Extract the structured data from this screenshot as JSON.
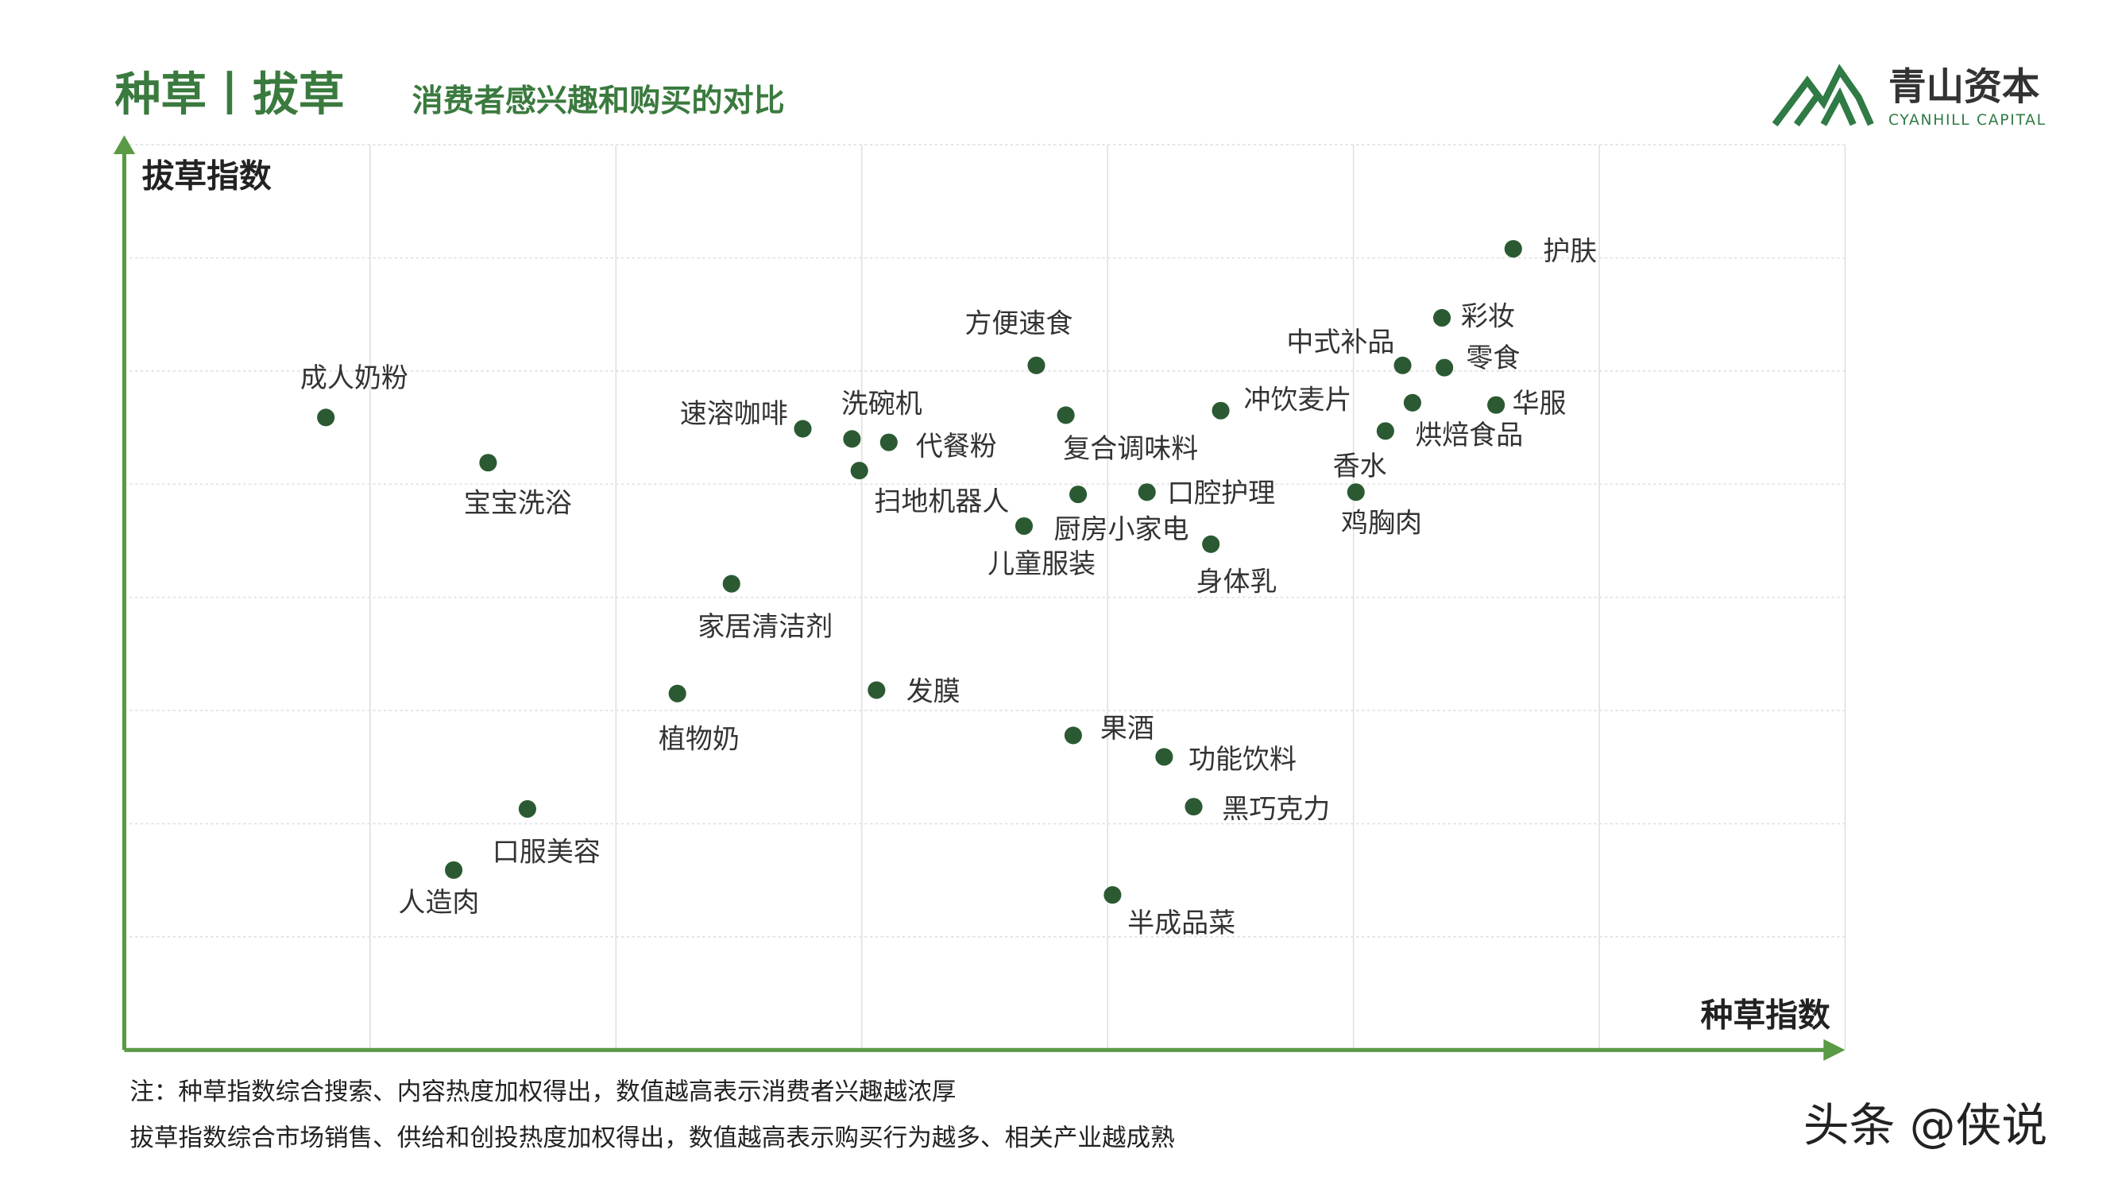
{
  "header": {
    "title": "种草丨拔草",
    "subtitle": "消费者感兴趣和购买的对比",
    "logo": "青山资本",
    "logo_en": "CYANHILL CAPITAL"
  },
  "chart_data": {
    "type": "scatter",
    "x_label": "种草指数",
    "y_label": "拔草指数",
    "color": "#2b5a32",
    "grid": true,
    "xlim": [
      0,
      7
    ],
    "ylim": [
      0,
      8
    ],
    "xticks": [
      1,
      2,
      3,
      4,
      5,
      6,
      7
    ],
    "yticks": [
      1,
      2,
      3,
      4,
      5,
      6,
      7,
      8
    ],
    "points": [
      {
        "label": "护肤",
        "x": 5.65,
        "y": 7.08
      },
      {
        "label": "彩妆",
        "x": 5.36,
        "y": 6.47
      },
      {
        "label": "中式补品",
        "x": 5.2,
        "y": 6.05
      },
      {
        "label": "零食",
        "x": 5.37,
        "y": 6.03
      },
      {
        "label": "华服",
        "x": 5.58,
        "y": 5.7
      },
      {
        "label": "冲饮麦片",
        "x": 4.46,
        "y": 5.65
      },
      {
        "label": "烘焙食品",
        "x": 5.24,
        "y": 5.72
      },
      {
        "label": "香水",
        "x": 5.13,
        "y": 5.47
      },
      {
        "label": "鸡胸肉",
        "x": 5.01,
        "y": 4.93
      },
      {
        "label": "方便速食",
        "x": 3.71,
        "y": 6.05
      },
      {
        "label": "复合调味料",
        "x": 3.83,
        "y": 5.61
      },
      {
        "label": "口腔护理",
        "x": 4.16,
        "y": 4.93
      },
      {
        "label": "厨房小家电",
        "x": 3.88,
        "y": 4.91
      },
      {
        "label": "儿童服装",
        "x": 3.66,
        "y": 4.63
      },
      {
        "label": "身体乳",
        "x": 4.42,
        "y": 4.47
      },
      {
        "label": "速溶咖啡",
        "x": 2.76,
        "y": 5.49
      },
      {
        "label": "洗碗机",
        "x": 2.96,
        "y": 5.4
      },
      {
        "label": "代餐粉",
        "x": 3.11,
        "y": 5.37
      },
      {
        "label": "扫地机器人",
        "x": 2.99,
        "y": 5.12
      },
      {
        "label": "成人奶粉",
        "x": 0.82,
        "y": 5.59
      },
      {
        "label": "宝宝洗浴",
        "x": 1.48,
        "y": 5.19
      },
      {
        "label": "家居清洁剂",
        "x": 2.47,
        "y": 4.12
      },
      {
        "label": "植物奶",
        "x": 2.25,
        "y": 3.15
      },
      {
        "label": "发膜",
        "x": 3.06,
        "y": 3.18
      },
      {
        "label": "果酒",
        "x": 3.86,
        "y": 2.78
      },
      {
        "label": "功能饮料",
        "x": 4.23,
        "y": 2.59
      },
      {
        "label": "黑巧克力",
        "x": 4.35,
        "y": 2.15
      },
      {
        "label": "半成品菜",
        "x": 4.02,
        "y": 1.37
      },
      {
        "label": "口服美容",
        "x": 1.64,
        "y": 2.13
      },
      {
        "label": "人造肉",
        "x": 1.34,
        "y": 1.59
      }
    ]
  },
  "notes": [
    "注：种草指数综合搜索、内容热度加权得出，数值越高表示消费者兴趣越浓厚",
    "拔草指数综合市场销售、供给和创投热度加权得出，数值越高表示购买行为越多、相关产业越成熟"
  ],
  "watermark": "头条 @侠说"
}
